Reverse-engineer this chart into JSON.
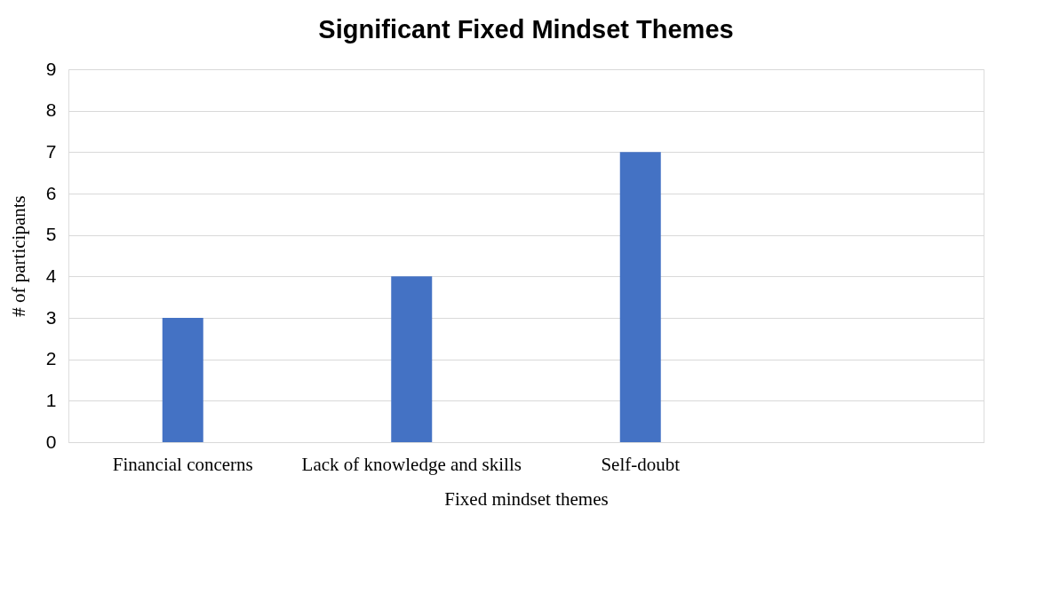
{
  "chart_data": {
    "type": "bar",
    "title": "Significant Fixed Mindset Themes",
    "xlabel": "Fixed mindset themes",
    "ylabel": "# of participants",
    "categories": [
      "Financial concerns",
      "Lack of knowledge and skills",
      "Self-doubt",
      null
    ],
    "values": [
      3,
      4,
      7,
      null
    ],
    "color": "#4472c4",
    "ylim": [
      0,
      9
    ],
    "yticks": [
      0,
      1,
      2,
      3,
      4,
      5,
      6,
      7,
      8,
      9
    ],
    "grid": "y"
  }
}
